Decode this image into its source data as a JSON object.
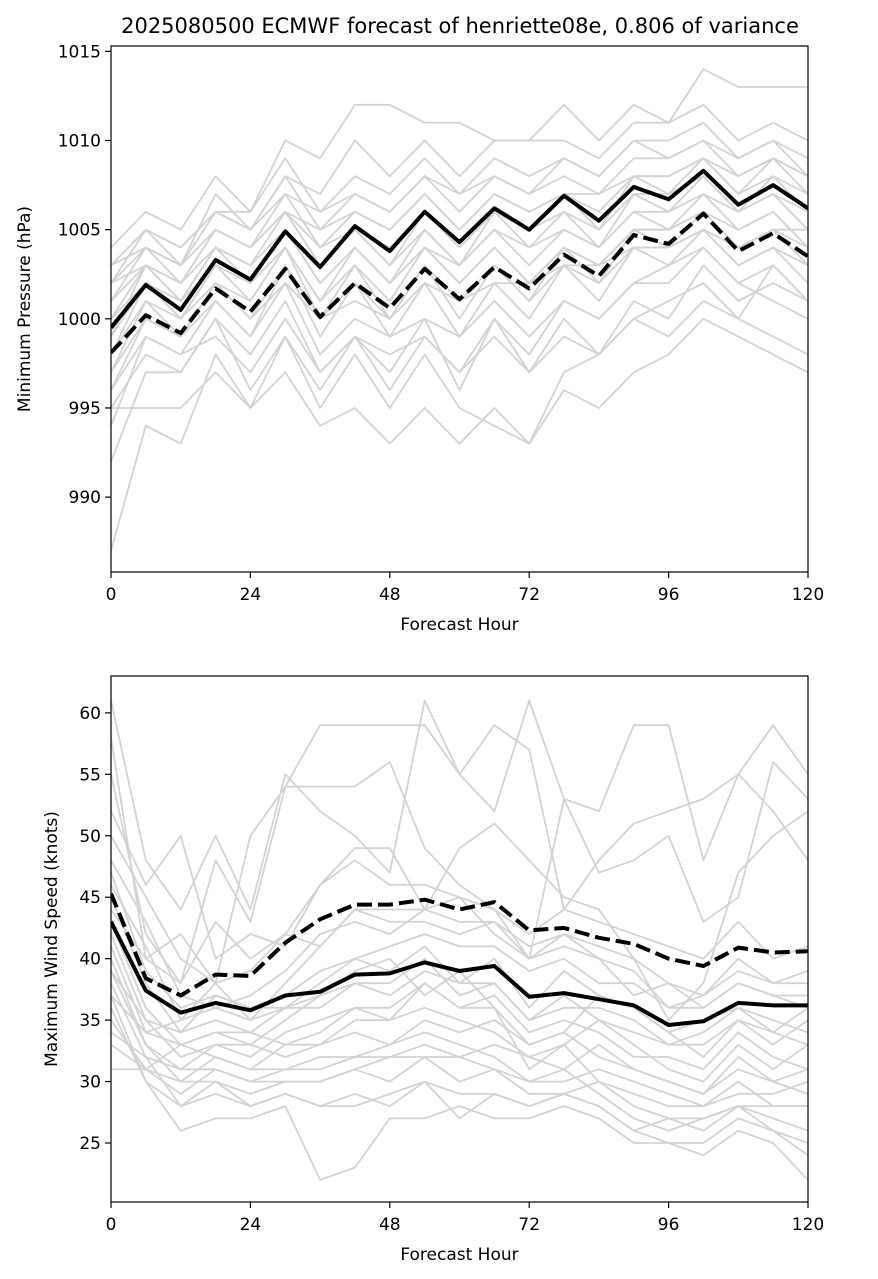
{
  "figure": {
    "title": "2025080500 ECMWF forecast of henriette08e, 0.806 of variance"
  },
  "chart_data": [
    {
      "type": "line",
      "xlabel": "Forecast Hour",
      "ylabel": "Minimum Pressure (hPa)",
      "xlim": [
        0,
        120
      ],
      "ylim": [
        985.8,
        1015.3
      ],
      "xticks": [
        0,
        24,
        48,
        72,
        96,
        120
      ],
      "yticks": [
        990,
        995,
        1000,
        1005,
        1010,
        1015
      ],
      "grid": false,
      "legend": "none",
      "colors": {
        "members": "#d3d3d3",
        "mean": "#000000",
        "weighted": "#000000"
      },
      "x": [
        0,
        6,
        12,
        18,
        24,
        30,
        36,
        42,
        48,
        54,
        60,
        66,
        72,
        78,
        84,
        90,
        96,
        102,
        108,
        114,
        120
      ],
      "members": [
        [
          987,
          994,
          993,
          998,
          995,
          997,
          994,
          995,
          993,
          995,
          993,
          995,
          993,
          996,
          995,
          997,
          998,
          1000,
          999,
          998,
          997
        ],
        [
          992,
          997,
          997,
          1000,
          998,
          1001,
          997,
          999,
          998,
          999,
          997,
          999,
          997,
          999,
          998,
          1000,
          1001,
          1002,
          1000,
          999,
          998
        ],
        [
          994,
          999,
          998,
          1001,
          999,
          1002,
          998,
          1000,
          999,
          1000,
          999,
          1001,
          999,
          1001,
          1000,
          1002,
          1003,
          1004,
          1002,
          1001,
          1000
        ],
        [
          995,
          998,
          997,
          1000,
          996,
          999,
          996,
          999,
          996,
          999,
          997,
          1000,
          998,
          1001,
          1000,
          1002,
          1002,
          1004,
          1002,
          1003,
          1001
        ],
        [
          996,
          1000,
          999,
          1002,
          1000,
          1003,
          1000,
          1002,
          1000,
          1003,
          1001,
          1003,
          1001,
          1003,
          1002,
          1004,
          1004,
          1005,
          1003,
          1004,
          1002
        ],
        [
          997,
          1001,
          1000,
          1003,
          1001,
          1004,
          1001,
          1003,
          1001,
          1004,
          1002,
          1004,
          1002,
          1004,
          1003,
          1005,
          1005,
          1006,
          1004,
          1005,
          1003
        ],
        [
          998,
          1002,
          1000,
          1003,
          1002,
          1005,
          1002,
          1004,
          1002,
          1005,
          1003,
          1005,
          1003,
          1005,
          1004,
          1006,
          1005,
          1007,
          1005,
          1006,
          1004
        ],
        [
          999,
          1003,
          1001,
          1004,
          1003,
          1006,
          1003,
          1005,
          1004,
          1006,
          1004,
          1006,
          1005,
          1006,
          1005,
          1007,
          1007,
          1008,
          1006,
          1007,
          1005
        ],
        [
          1000,
          1003,
          1002,
          1005,
          1004,
          1007,
          1004,
          1006,
          1005,
          1007,
          1005,
          1007,
          1006,
          1007,
          1006,
          1008,
          1008,
          1009,
          1007,
          1008,
          1006
        ],
        [
          1001,
          1004,
          1003,
          1006,
          1005,
          1008,
          1005,
          1007,
          1006,
          1008,
          1006,
          1008,
          1007,
          1008,
          1007,
          1009,
          1009,
          1010,
          1008,
          1009,
          1007
        ],
        [
          1002,
          1005,
          1004,
          1006,
          1006,
          1009,
          1006,
          1008,
          1007,
          1009,
          1007,
          1009,
          1008,
          1009,
          1008,
          1010,
          1010,
          1011,
          1009,
          1010,
          1008
        ],
        [
          1003,
          1005,
          1003,
          1007,
          1005,
          1008,
          1007,
          1010,
          1008,
          1010,
          1008,
          1010,
          1010,
          1010,
          1009,
          1011,
          1011,
          1012,
          1010,
          1011,
          1010
        ],
        [
          1004,
          1006,
          1005,
          1008,
          1006,
          1010,
          1009,
          1012,
          1012,
          1011,
          1011,
          1010,
          1010,
          1012,
          1010,
          1012,
          1011,
          1014,
          1013,
          1013,
          1013
        ],
        [
          1003,
          1004,
          1002,
          1005,
          1004,
          1006,
          1004,
          1005,
          1003,
          1006,
          1004,
          1006,
          1005,
          1007,
          1005,
          1008,
          1007,
          1009,
          1007,
          1009,
          1008
        ],
        [
          1002,
          1003,
          1001,
          1004,
          1002,
          1005,
          1002,
          1004,
          1002,
          1004,
          1003,
          1005,
          1004,
          1005,
          1004,
          1006,
          1006,
          1008,
          1006,
          1008,
          1007
        ],
        [
          999,
          1002,
          1000,
          1002,
          1001,
          1004,
          1000,
          1003,
          1000,
          1003,
          1000,
          1003,
          1001,
          1004,
          1002,
          1005,
          1004,
          1006,
          1004,
          1005,
          1005
        ],
        [
          998,
          1001,
          999,
          1001,
          999,
          1003,
          999,
          1002,
          999,
          1002,
          999,
          1002,
          1000,
          1003,
          1001,
          1004,
          1003,
          1005,
          1003,
          1004,
          1003
        ],
        [
          996,
          999,
          998,
          999,
          997,
          1000,
          997,
          999,
          997,
          1000,
          996,
          1000,
          997,
          1000,
          998,
          1001,
          1000,
          1003,
          1001,
          1002,
          1001
        ],
        [
          995,
          995,
          995,
          997,
          995,
          999,
          995,
          998,
          995,
          998,
          995,
          994,
          993,
          997,
          998,
          1000,
          999,
          1001,
          1000,
          1003,
          1001
        ],
        [
          1000,
          1002,
          1001,
          1003,
          1002,
          1004,
          1001,
          1004,
          1002,
          1004,
          1002,
          1004,
          1002,
          1004,
          1003,
          1005,
          1005,
          1006,
          1005,
          1006,
          1004
        ],
        [
          1001,
          1003,
          1002,
          1004,
          1003,
          1005,
          1003,
          1005,
          1003,
          1005,
          1003,
          1006,
          1004,
          1006,
          1004,
          1007,
          1006,
          1007,
          1006,
          1007,
          1006
        ],
        [
          997,
          1000,
          999,
          1002,
          1000,
          1002,
          1000,
          1001,
          1000,
          1002,
          1001,
          1002,
          1002,
          1003,
          1003,
          1004,
          1004,
          1005,
          1004,
          1005,
          1004
        ],
        [
          1002,
          1004,
          1003,
          1005,
          1004,
          1006,
          1005,
          1006,
          1005,
          1007,
          1005,
          1007,
          1006,
          1007,
          1007,
          1008,
          1008,
          1009,
          1008,
          1009,
          1008
        ],
        [
          1003,
          1005,
          1004,
          1006,
          1005,
          1007,
          1006,
          1007,
          1006,
          1008,
          1007,
          1008,
          1007,
          1009,
          1008,
          1010,
          1009,
          1010,
          1009,
          1010,
          1009
        ]
      ],
      "mean": [
        999.5,
        1001.9,
        1000.5,
        1003.3,
        1002.2,
        1004.9,
        1002.9,
        1005.2,
        1003.8,
        1006.0,
        1004.3,
        1006.2,
        1005.0,
        1006.9,
        1005.5,
        1007.4,
        1006.7,
        1008.3,
        1006.4,
        1007.5,
        1006.2
      ],
      "weighted": [
        998.1,
        1000.2,
        999.2,
        1001.7,
        1000.4,
        1002.8,
        1000.1,
        1002.0,
        1000.6,
        1002.8,
        1001.1,
        1002.9,
        1001.7,
        1003.6,
        1002.4,
        1004.7,
        1004.2,
        1005.9,
        1003.8,
        1004.8,
        1003.5
      ]
    },
    {
      "type": "line",
      "xlabel": "Forecast Hour",
      "ylabel": "Maximum Wind Speed (knots)",
      "xlim": [
        0,
        120
      ],
      "ylim": [
        20.2,
        63.0
      ],
      "xticks": [
        0,
        24,
        48,
        72,
        96,
        120
      ],
      "yticks": [
        25,
        30,
        35,
        40,
        45,
        50,
        55,
        60
      ],
      "grid": false,
      "legend": "none",
      "colors": {
        "members": "#d3d3d3",
        "mean": "#000000",
        "weighted": "#000000"
      },
      "x": [
        0,
        6,
        12,
        18,
        24,
        30,
        36,
        42,
        48,
        54,
        60,
        66,
        72,
        78,
        84,
        90,
        96,
        102,
        108,
        114,
        120
      ],
      "members": [
        [
          61,
          48,
          44,
          50,
          44,
          55,
          52,
          50,
          47,
          61,
          55,
          52,
          61,
          53,
          52,
          59,
          59,
          48,
          55,
          59,
          55
        ],
        [
          58,
          40,
          42,
          38,
          50,
          54,
          59,
          59,
          59,
          59,
          55,
          59,
          57,
          44,
          48,
          51,
          52,
          53,
          55,
          52,
          48
        ],
        [
          55,
          42,
          38,
          48,
          43,
          54,
          54,
          54,
          56,
          49,
          46,
          44,
          40,
          53,
          47,
          48,
          50,
          43,
          45,
          56,
          53
        ],
        [
          52,
          46,
          50,
          40,
          42,
          41,
          46,
          49,
          49,
          44,
          49,
          51,
          48,
          45,
          44,
          40,
          35,
          38,
          47,
          50,
          52
        ],
        [
          50,
          45,
          40,
          38,
          39,
          42,
          46,
          48,
          46,
          46,
          45,
          44,
          42,
          44,
          43,
          42,
          41,
          40,
          43,
          40,
          41
        ],
        [
          48,
          43,
          37,
          36,
          37,
          39,
          42,
          43,
          42,
          44,
          43,
          43,
          41,
          42,
          41,
          40,
          38,
          37,
          40,
          38,
          39
        ],
        [
          46,
          41,
          35,
          36,
          35,
          38,
          41,
          44,
          44,
          44,
          45,
          42,
          40,
          42,
          40,
          37,
          38,
          36,
          38,
          37,
          36
        ],
        [
          45,
          38,
          34,
          35,
          34,
          36,
          38,
          40,
          39,
          41,
          38,
          40,
          36,
          39,
          37,
          36,
          34,
          35,
          36,
          35,
          34
        ],
        [
          43,
          36,
          33,
          34,
          33,
          35,
          37,
          38,
          38,
          40,
          37,
          38,
          35,
          37,
          35,
          34,
          33,
          33,
          35,
          34,
          33
        ],
        [
          42,
          35,
          32,
          33,
          32,
          34,
          35,
          36,
          35,
          38,
          36,
          37,
          34,
          35,
          34,
          32,
          32,
          31,
          34,
          32,
          31
        ],
        [
          41,
          34,
          33,
          32,
          31,
          33,
          33,
          34,
          33,
          35,
          34,
          35,
          33,
          34,
          32,
          31,
          30,
          29,
          32,
          30,
          29
        ],
        [
          40,
          33,
          31,
          31,
          30,
          31,
          32,
          32,
          32,
          33,
          32,
          33,
          32,
          33,
          30,
          29,
          28,
          28,
          30,
          28,
          28
        ],
        [
          39,
          33,
          30,
          30,
          29,
          30,
          30,
          31,
          30,
          32,
          30,
          31,
          30,
          31,
          29,
          27,
          26,
          27,
          28,
          27,
          26
        ],
        [
          38,
          32,
          28,
          29,
          28,
          29,
          28,
          29,
          28,
          30,
          29,
          29,
          28,
          29,
          28,
          26,
          25,
          25,
          27,
          26,
          25
        ],
        [
          37,
          30,
          26,
          27,
          27,
          28,
          22,
          23,
          27,
          27,
          28,
          27,
          27,
          28,
          27,
          25,
          25,
          24,
          26,
          25,
          22
        ],
        [
          36,
          30,
          28,
          30,
          28,
          29,
          28,
          28,
          29,
          30,
          27,
          29,
          28,
          29,
          28,
          26,
          27,
          26,
          28,
          26,
          24
        ],
        [
          44,
          40,
          38,
          43,
          40,
          42,
          41,
          44,
          43,
          43,
          42,
          43,
          40,
          41,
          40,
          39,
          36,
          37,
          39,
          38,
          38
        ],
        [
          39,
          35,
          34,
          37,
          36,
          36,
          36,
          38,
          37,
          39,
          38,
          38,
          35,
          36,
          36,
          35,
          33,
          34,
          36,
          34,
          36
        ],
        [
          37,
          34,
          35,
          38,
          35,
          36,
          37,
          39,
          40,
          37,
          39,
          36,
          33,
          34,
          37,
          36,
          34,
          32,
          35,
          33,
          35
        ],
        [
          35,
          31,
          33,
          34,
          34,
          33,
          34,
          36,
          36,
          38,
          36,
          36,
          31,
          33,
          35,
          33,
          31,
          30,
          33,
          31,
          33
        ],
        [
          34,
          32,
          31,
          33,
          33,
          32,
          33,
          35,
          35,
          36,
          35,
          34,
          32,
          31,
          33,
          31,
          30,
          29,
          31,
          30,
          31
        ],
        [
          33,
          31,
          30,
          32,
          31,
          31,
          31,
          32,
          33,
          34,
          33,
          32,
          30,
          30,
          31,
          30,
          29,
          28,
          29,
          29,
          30
        ],
        [
          31,
          31,
          29,
          31,
          30,
          30,
          30,
          31,
          32,
          32,
          32,
          31,
          29,
          29,
          30,
          28,
          27,
          27,
          28,
          28,
          28
        ],
        [
          47,
          39,
          36,
          37,
          36,
          37,
          39,
          40,
          41,
          42,
          41,
          41,
          39,
          40,
          38,
          38,
          36,
          36,
          38,
          37,
          37
        ]
      ],
      "mean": [
        43.0,
        37.4,
        35.6,
        36.4,
        35.8,
        37.0,
        37.3,
        38.7,
        38.8,
        39.7,
        39.0,
        39.4,
        36.9,
        37.2,
        36.7,
        36.2,
        34.6,
        34.9,
        36.4,
        36.2,
        36.2
      ],
      "weighted": [
        45.3,
        38.4,
        37.0,
        38.7,
        38.6,
        41.3,
        43.2,
        44.4,
        44.4,
        44.8,
        44.0,
        44.6,
        42.3,
        42.5,
        41.7,
        41.2,
        40.0,
        39.4,
        40.9,
        40.5,
        40.6
      ]
    }
  ]
}
